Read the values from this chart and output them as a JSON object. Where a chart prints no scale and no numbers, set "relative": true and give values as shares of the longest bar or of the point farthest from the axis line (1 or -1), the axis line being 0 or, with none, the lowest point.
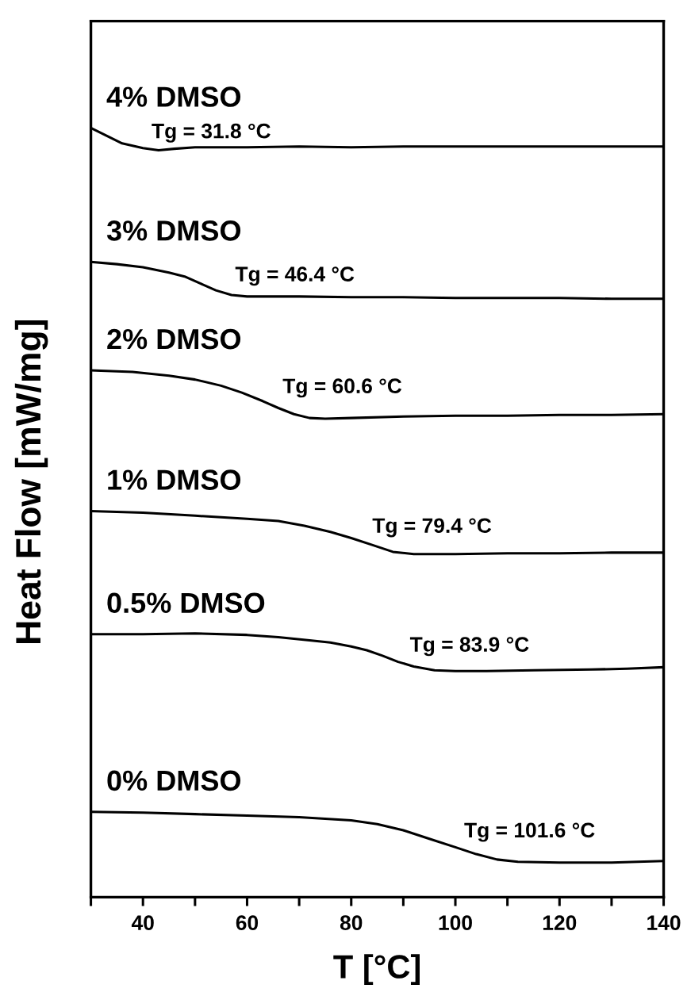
{
  "chart_data": {
    "type": "line",
    "xlabel": "T [°C]",
    "ylabel": "Heat Flow [mW/mg]",
    "relative": true,
    "line_style": "solid",
    "xlim": [
      30,
      140
    ],
    "xticks": [
      {
        "value": 30,
        "label": null
      },
      40,
      {
        "value": 50,
        "label": null
      },
      60,
      {
        "value": 70,
        "label": null
      },
      80,
      {
        "value": 90,
        "label": null
      },
      100,
      {
        "value": 110,
        "label": null
      },
      120,
      {
        "value": 130,
        "label": null
      },
      140
    ],
    "series": [
      {
        "name": "4% DMSO",
        "color": "#000000",
        "x": [
          30,
          33,
          36,
          40,
          43,
          46,
          50,
          60,
          70,
          80,
          90,
          100,
          110,
          120,
          130,
          140
        ],
        "values": [
          1.0,
          0.99,
          0.98,
          0.974,
          0.971,
          0.973,
          0.975,
          0.975,
          0.976,
          0.975,
          0.976,
          0.976,
          0.976,
          0.976,
          0.976,
          0.976
        ]
      },
      {
        "name": "3% DMSO",
        "color": "#000000",
        "x": [
          30,
          35,
          40,
          45,
          48,
          51,
          54,
          57,
          60,
          70,
          80,
          90,
          100,
          110,
          120,
          130,
          140
        ],
        "values": [
          0.826,
          0.823,
          0.819,
          0.812,
          0.807,
          0.798,
          0.789,
          0.783,
          0.781,
          0.781,
          0.78,
          0.78,
          0.779,
          0.779,
          0.779,
          0.778,
          0.778
        ]
      },
      {
        "name": "2% DMSO",
        "color": "#000000",
        "x": [
          30,
          38,
          45,
          50,
          55,
          59,
          63,
          66,
          69,
          72,
          75,
          80,
          90,
          100,
          110,
          120,
          130,
          140
        ],
        "values": [
          0.685,
          0.683,
          0.678,
          0.673,
          0.665,
          0.656,
          0.645,
          0.636,
          0.628,
          0.623,
          0.622,
          0.623,
          0.625,
          0.626,
          0.626,
          0.627,
          0.627,
          0.628
        ]
      },
      {
        "name": "1% DMSO",
        "color": "#000000",
        "x": [
          30,
          40,
          50,
          60,
          66,
          71,
          76,
          80,
          84,
          88,
          92,
          96,
          100,
          110,
          120,
          130,
          140
        ],
        "values": [
          0.502,
          0.5,
          0.496,
          0.492,
          0.489,
          0.483,
          0.475,
          0.467,
          0.458,
          0.449,
          0.446,
          0.446,
          0.446,
          0.447,
          0.447,
          0.448,
          0.448
        ]
      },
      {
        "name": "0.5% DMSO",
        "color": "#000000",
        "x": [
          30,
          40,
          50,
          60,
          66,
          72,
          76,
          80,
          83,
          86,
          89,
          92,
          96,
          100,
          106,
          115,
          126,
          133,
          140
        ],
        "values": [
          0.342,
          0.342,
          0.343,
          0.341,
          0.338,
          0.334,
          0.331,
          0.326,
          0.321,
          0.314,
          0.306,
          0.3,
          0.295,
          0.294,
          0.294,
          0.295,
          0.296,
          0.297,
          0.299
        ]
      },
      {
        "name": "0% DMSO",
        "color": "#000000",
        "x": [
          30,
          40,
          50,
          60,
          70,
          80,
          85,
          90,
          95,
          100,
          104,
          108,
          112,
          120,
          130,
          140
        ],
        "values": [
          0.111,
          0.11,
          0.108,
          0.106,
          0.104,
          0.1,
          0.095,
          0.087,
          0.076,
          0.065,
          0.056,
          0.049,
          0.046,
          0.045,
          0.045,
          0.047
        ]
      }
    ],
    "annotations": [
      "Tg = 31.8 °C",
      "Tg = 46.4 °C",
      "Tg = 60.6 °C",
      "Tg = 79.4 °C",
      "Tg = 83.9 °C",
      "Tg = 101.6 °C"
    ]
  }
}
